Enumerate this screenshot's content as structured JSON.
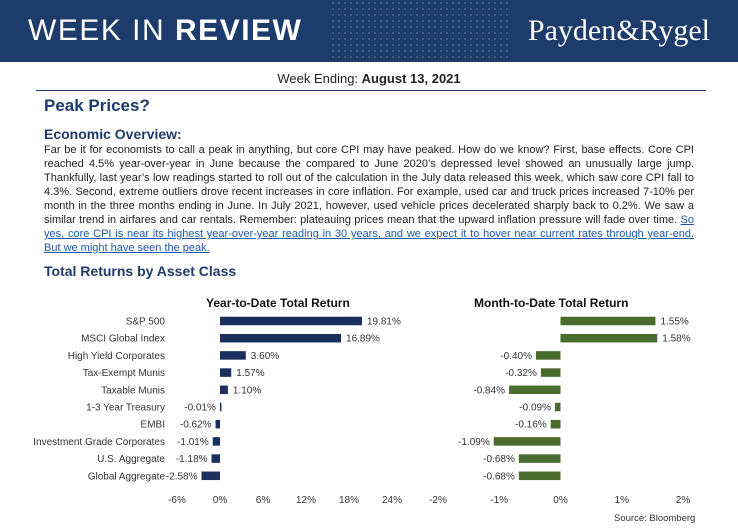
{
  "header": {
    "title_light": "WEEK IN ",
    "title_bold": "REVIEW",
    "brand": "Payden&Rygel",
    "colors": {
      "navy": "#1e3c6b",
      "green": "#4a6b2e"
    }
  },
  "week": {
    "label": "Week Ending: ",
    "date": "August 13, 2021"
  },
  "article": {
    "title": "Peak Prices?",
    "section": "Economic Overview:",
    "body": "Far be it for economists to call a peak in anything, but core CPI may have peaked. How do we know? First, base effects. Core CPI reached 4.5% year-over-year in June because the compared to June 2020’s depressed level showed an unusually large jump. Thankfully, last year’s low readings started to roll out of the calculation in the July data released this week, which saw core CPI fall to 4.3%. Second, extreme outliers drove recent increases in core inflation. For example, used car and truck prices increased 7-10% per month in the three months ending in June. In July 2021, however, used vehicle prices decelerated sharply back to 0.2%. We saw a similar trend in airfares and car rentals. Remember: plateauing prices mean that the upward inflation pressure will fade over time. ",
    "link": "So yes, core CPI is near its highest year-over-year reading in 30 years, and we expect it to hover near current rates through year-end. But we might have seen the peak."
  },
  "returns_section": "Total Returns by Asset Class",
  "source": "Source: Bloomberg",
  "chart_data": [
    {
      "type": "bar",
      "orientation": "horizontal",
      "title": "Year-to-Date Total Return",
      "categories": [
        "S&P 500",
        "MSCI Global Index",
        "High Yield Corporates",
        "Tax-Exempt Munis",
        "Taxable Munis",
        "1-3 Year Treasury",
        "EMBI",
        "Investment Grade Corporates",
        "U.S. Aggregate",
        "Global Aggregate"
      ],
      "values": [
        19.81,
        16.89,
        3.6,
        1.57,
        1.1,
        -0.01,
        -0.62,
        -1.01,
        -1.18,
        -2.58
      ],
      "value_labels": [
        "19.81%",
        "16.89%",
        "3.60%",
        "1.57%",
        "1.10%",
        "-0.01%",
        "-0.62%",
        "-1.01%",
        "-1.18%",
        "-2.58%"
      ],
      "xlim": [
        -6,
        24
      ],
      "ticks": [
        -6,
        0,
        6,
        12,
        18,
        24
      ],
      "tick_labels": [
        "-6%",
        "0%",
        "6%",
        "12%",
        "18%",
        "24%"
      ],
      "color": "#1c2e5e"
    },
    {
      "type": "bar",
      "orientation": "horizontal",
      "title": "Month-to-Date Total Return",
      "categories": [
        "S&P 500",
        "MSCI Global Index",
        "High Yield Corporates",
        "Tax-Exempt Munis",
        "Taxable Munis",
        "1-3 Year Treasury",
        "EMBI",
        "Investment Grade Corporates",
        "U.S. Aggregate",
        "Global Aggregate"
      ],
      "values": [
        1.55,
        1.58,
        -0.4,
        -0.32,
        -0.84,
        -0.09,
        -0.16,
        -1.09,
        -0.68,
        -0.68
      ],
      "value_labels": [
        "1.55%",
        "1.58%",
        "-0.40%",
        "-0.32%",
        "-0.84%",
        "-0.09%",
        "-0.16%",
        "-1.09%",
        "-0.68%",
        "-0.68%"
      ],
      "xlim": [
        -2,
        2
      ],
      "ticks": [
        -2,
        -1,
        0,
        1,
        2
      ],
      "tick_labels": [
        "-2%",
        "-1%",
        "0%",
        "1%",
        "2%"
      ],
      "color": "#4a6b2e"
    }
  ]
}
